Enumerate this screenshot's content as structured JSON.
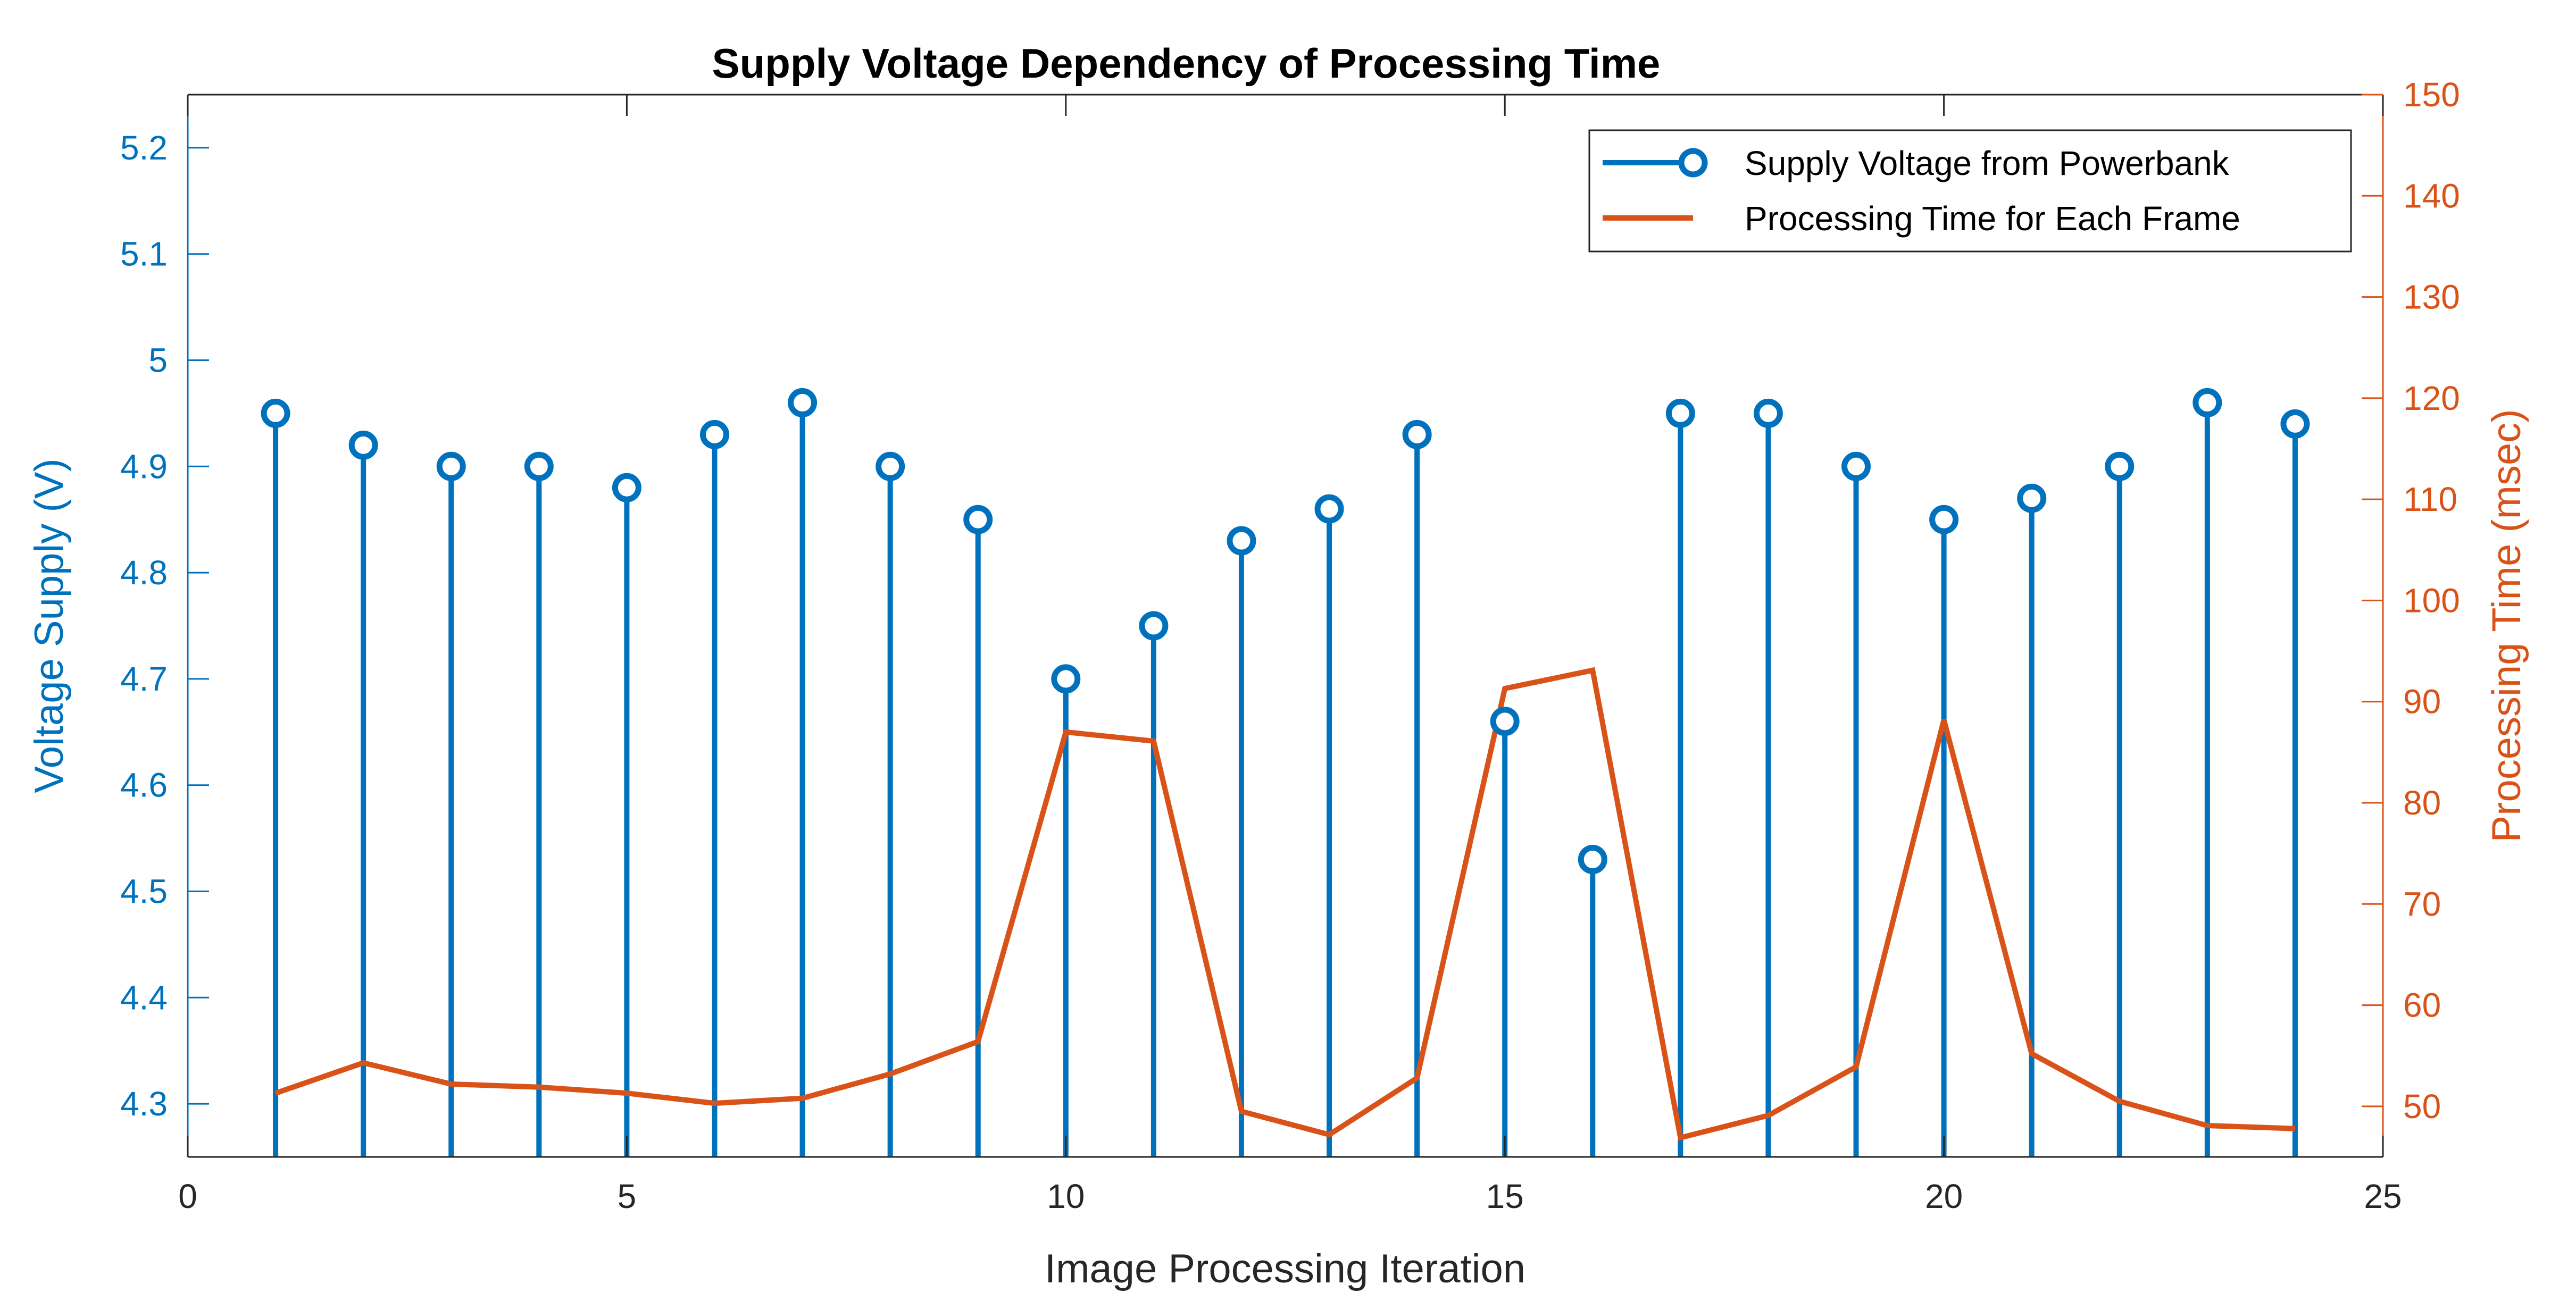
{
  "chart_data": {
    "type": "line",
    "title": "Supply Voltage Dependency of Processing Time",
    "xlabel": "Image Processing Iteration",
    "ylabel": "Voltage Supply (V)",
    "y2label": "Processing Time (msec)",
    "xlim": [
      0,
      25
    ],
    "ylim": [
      4.25,
      5.25
    ],
    "y2lim": [
      45,
      150
    ],
    "x_ticks": [
      0,
      5,
      10,
      15,
      20,
      25
    ],
    "y_ticks": [
      4.3,
      4.4,
      4.5,
      4.6,
      4.7,
      4.8,
      4.9,
      5,
      5.1,
      5.2
    ],
    "y2_ticks": [
      50,
      60,
      70,
      80,
      90,
      100,
      110,
      120,
      130,
      140,
      150
    ],
    "x_tick_labels": [
      "0",
      "5",
      "10",
      "15",
      "20",
      "25"
    ],
    "y_tick_labels": [
      "4.3",
      "4.4",
      "4.5",
      "4.6",
      "4.7",
      "4.8",
      "4.9",
      "5",
      "5.1",
      "5.2"
    ],
    "y2_tick_labels": [
      "50",
      "60",
      "70",
      "80",
      "90",
      "100",
      "110",
      "120",
      "130",
      "140",
      "150"
    ],
    "x": [
      1,
      2,
      3,
      4,
      5,
      6,
      7,
      8,
      9,
      10,
      11,
      12,
      13,
      14,
      15,
      16,
      17,
      18,
      19,
      20,
      21,
      22,
      23,
      24
    ],
    "series": [
      {
        "name": "Supply Voltage from Powerbank",
        "style": "stem",
        "axis": "left",
        "color": "#0072BD",
        "values": [
          4.95,
          4.92,
          4.9,
          4.9,
          4.88,
          4.93,
          4.96,
          4.9,
          4.85,
          4.7,
          4.75,
          4.83,
          4.86,
          4.93,
          4.66,
          4.53,
          4.95,
          4.95,
          4.9,
          4.85,
          4.87,
          4.9,
          4.96,
          4.94
        ]
      },
      {
        "name": "Processing Time for Each Frame",
        "style": "line",
        "axis": "right",
        "color": "#D95319",
        "values": [
          51.3,
          54.3,
          52.2,
          51.9,
          51.3,
          50.3,
          50.8,
          53.2,
          56.4,
          87.0,
          86.1,
          49.5,
          47.2,
          52.8,
          91.3,
          93.1,
          46.9,
          49.1,
          53.9,
          88.2,
          55.2,
          50.5,
          48.1,
          47.8
        ]
      }
    ],
    "grid": false,
    "legend_position": "top-right"
  }
}
